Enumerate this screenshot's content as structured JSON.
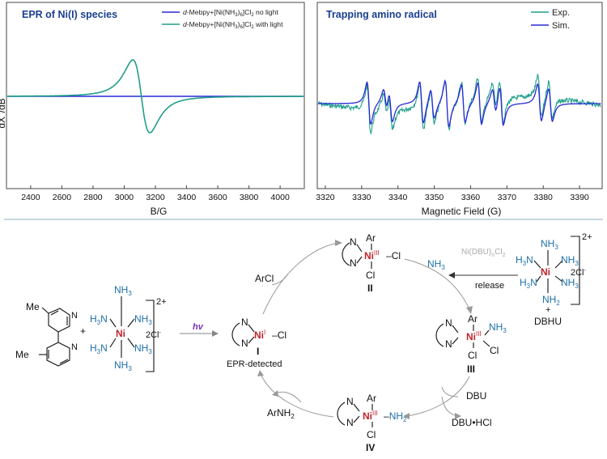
{
  "chart_data": [
    {
      "type": "line",
      "title": "EPR of Ni(I) species",
      "xlabel": "B/G",
      "ylabel": "dX''/dB",
      "xlim": [
        2250,
        4150
      ],
      "xticks": [
        2400,
        2600,
        2800,
        3000,
        3200,
        3400,
        3600,
        3800,
        4000
      ],
      "y_tick_labels": false,
      "series": [
        {
          "name": "d-Mebpy+[Ni(NH3)6]Cl2 no light",
          "color": "#2a2ad6",
          "x": [
            2250,
            3000,
            4150
          ],
          "y": [
            0,
            0,
            0
          ]
        },
        {
          "name": "d-Mebpy+[Ni(NH3)6]Cl2 with light",
          "color": "#1f9e89",
          "line_center": 3110,
          "line_width": 95,
          "amplitude": 1.0
        }
      ],
      "legend": "top-right",
      "grid": false
    },
    {
      "type": "line",
      "title": "Trapping amino radical",
      "xlabel": "Magnetic Field (G)",
      "xlim": [
        3318,
        3396
      ],
      "xticks": [
        3320,
        3330,
        3340,
        3350,
        3360,
        3370,
        3380,
        3390
      ],
      "y_tick_labels": false,
      "series": [
        {
          "name": "Exp.",
          "color": "#1f9e89"
        },
        {
          "name": "Sim.",
          "color": "#2a2ad6"
        }
      ],
      "hyperfine_lines_G": [
        3332,
        3336.5,
        3338,
        3346.5,
        3349.5,
        3353.5,
        3358,
        3362.5,
        3366.5,
        3368.5,
        3379,
        3382
      ],
      "legend": "top-right",
      "grid": false
    }
  ],
  "scheme": {
    "ligand_me_top": "Me",
    "ligand_me_bottom": "Me",
    "plus": "+",
    "complex": {
      "nh3": "NH",
      "sub3": "3",
      "h3n": "H",
      "ni": "Ni",
      "charge": "2+",
      "counter": "2Cl",
      "counter_sup": "-"
    },
    "hv": "hv",
    "species_I": {
      "label": "I",
      "note": "EPR-detected",
      "ni": "Ni",
      "ox": "I",
      "cl": "Cl"
    },
    "species_II": {
      "label": "II",
      "ar": "Ar",
      "ni": "Ni",
      "ox": "III",
      "cl": "Cl"
    },
    "species_III": {
      "label": "III",
      "ar": "Ar",
      "ni": "Ni",
      "ox": "III",
      "nh3": "NH",
      "cl": "Cl"
    },
    "species_IV": {
      "label": "IV",
      "ar": "Ar",
      "ni": "Ni",
      "ox": "III",
      "nh2": "NH",
      "sub2": "2",
      "cl": "Cl"
    },
    "reagent_arcl": "ArCl",
    "reagent_nh3": "NH",
    "release": "release",
    "grey_complex": "Ni(DBU)",
    "grey_sub": "n",
    "grey_cl": "Cl",
    "grey_sub2": "2",
    "dbhu_plus": "+",
    "dbhu": "DBHU",
    "dbu": "DBU",
    "dbu_hcl": "DBU•HCl",
    "product": "ArNH",
    "n": "N"
  }
}
